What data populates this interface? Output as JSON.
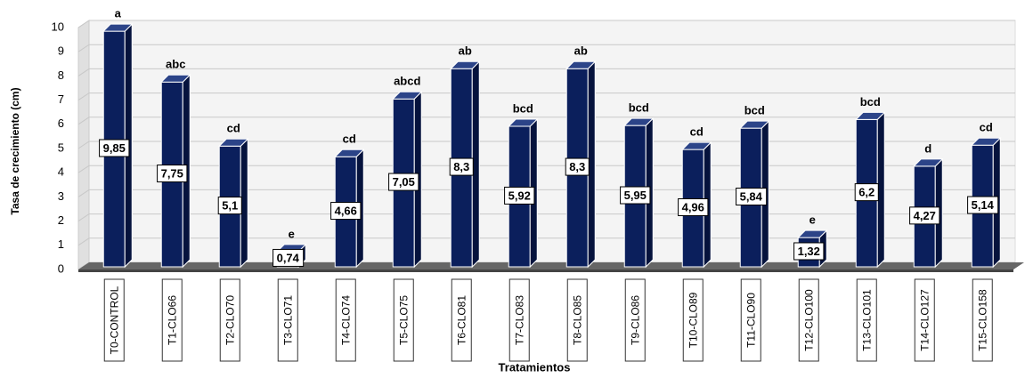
{
  "chart_data": {
    "type": "bar3d",
    "xlabel": "Tratamientos",
    "ylabel": "Tasa de crecimiento (cm)",
    "categories": [
      "T0-CONTROL",
      "T1-CLO66",
      "T2-CLO70",
      "T3-CLO71",
      "T4-CLO74",
      "T5-CLO75",
      "T6-CLO81",
      "T7-CLO83",
      "T8-CLO85",
      "T9-CLO86",
      "T10-CLO89",
      "T11-CLO90",
      "T12-CLO100",
      "T13-CLO101",
      "T14-CLO127",
      "T15-CLO158"
    ],
    "values": [
      9.85,
      7.75,
      5.1,
      0.74,
      4.66,
      7.05,
      8.3,
      5.92,
      8.3,
      5.95,
      4.96,
      5.84,
      1.32,
      6.2,
      4.27,
      5.14
    ],
    "value_labels": [
      "9,85",
      "7,75",
      "5,1",
      "0,74",
      "4,66",
      "7,05",
      "8,3",
      "5,92",
      "8,3",
      "5,95",
      "4,96",
      "5,84",
      "1,32",
      "6,2",
      "4,27",
      "5,14"
    ],
    "annotations": [
      "a",
      "abc",
      "cd",
      "e",
      "cd",
      "abcd",
      "ab",
      "bcd",
      "ab",
      "bcd",
      "cd",
      "bcd",
      "e",
      "bcd",
      "d",
      "cd"
    ],
    "color": "#0b1f5c",
    "ylim": [
      0,
      10
    ],
    "yticks": [
      0,
      1,
      2,
      3,
      4,
      5,
      6,
      7,
      8,
      9,
      10
    ],
    "grid": true
  }
}
